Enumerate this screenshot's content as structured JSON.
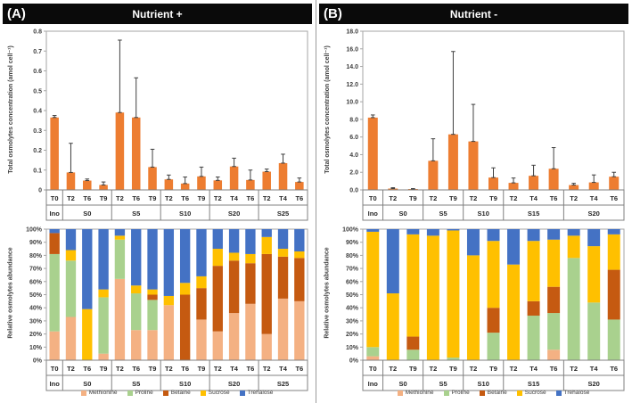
{
  "figure": {
    "panels": [
      {
        "label": "(A)",
        "title": "Nutrient +"
      },
      {
        "label": "(B)",
        "title": "Nutrient -"
      }
    ]
  },
  "colors": {
    "bar_orange": "#ED7D31",
    "methionine": "#F4B183",
    "proline": "#A9D18E",
    "betaine": "#C55A11",
    "sucrose": "#FFC000",
    "trehalose": "#4472C4",
    "error_bar": "#3F3F3F",
    "axis_line": "#A6A6A6",
    "table_line": "#808080",
    "header_bg": "#0A0A0A",
    "header_text": "#FFFFFF"
  },
  "chart_data": [
    {
      "id": "A_top",
      "type": "bar",
      "title": "Nutrient +",
      "ylabel": "Total osmolytes concentration (amol cell⁻¹)",
      "ylim": [
        0,
        0.8
      ],
      "ytick_labels": [
        "0",
        "0.1",
        "0.2",
        "0.3",
        "0.4",
        "0.5",
        "0.6",
        "0.7",
        "0.8"
      ],
      "bar_color": "#ED7D31",
      "groups": [
        {
          "label": "Ino",
          "categories": [
            "T0"
          ]
        },
        {
          "label": "S0",
          "categories": [
            "T2",
            "T6",
            "T9"
          ]
        },
        {
          "label": "S5",
          "categories": [
            "T2",
            "T6",
            "T9"
          ]
        },
        {
          "label": "S10",
          "categories": [
            "T2",
            "T6",
            "T9"
          ]
        },
        {
          "label": "S20",
          "categories": [
            "T2",
            "T4",
            "T6"
          ]
        },
        {
          "label": "S25",
          "categories": [
            "T2",
            "T4",
            "T6"
          ]
        }
      ],
      "values": [
        0.365,
        0.088,
        0.047,
        0.025,
        0.39,
        0.365,
        0.115,
        0.053,
        0.032,
        0.068,
        0.048,
        0.118,
        0.05,
        0.092,
        0.135,
        0.04
      ],
      "errors_up": [
        0.01,
        0.147,
        0.008,
        0.015,
        0.365,
        0.2,
        0.09,
        0.022,
        0.033,
        0.047,
        0.017,
        0.042,
        0.05,
        0.013,
        0.045,
        0.02
      ]
    },
    {
      "id": "B_top",
      "type": "bar",
      "title": "Nutrient -",
      "ylabel": "Total osmolytes concentration (amol cell⁻¹)",
      "ylim": [
        0,
        18
      ],
      "ytick_labels": [
        "0.0",
        "2.0",
        "4.0",
        "6.0",
        "8.0",
        "10.0",
        "12.0",
        "14.0",
        "16.0",
        "18.0"
      ],
      "bar_color": "#ED7D31",
      "groups": [
        {
          "label": "Ino",
          "categories": [
            "T0"
          ]
        },
        {
          "label": "S0",
          "categories": [
            "T2",
            "T9"
          ]
        },
        {
          "label": "S5",
          "categories": [
            "T2",
            "T9"
          ]
        },
        {
          "label": "S10",
          "categories": [
            "T2",
            "T9"
          ]
        },
        {
          "label": "S15",
          "categories": [
            "T2",
            "T4",
            "T6"
          ]
        },
        {
          "label": "S20",
          "categories": [
            "T2",
            "T4",
            "T6"
          ]
        }
      ],
      "values": [
        8.2,
        0.15,
        0.1,
        3.3,
        6.3,
        5.5,
        1.4,
        0.8,
        1.6,
        2.4,
        0.55,
        0.85,
        1.5
      ],
      "errors_up": [
        0.3,
        0.1,
        0.05,
        2.5,
        9.4,
        4.2,
        1.1,
        0.55,
        1.2,
        2.4,
        0.2,
        0.85,
        0.5
      ]
    },
    {
      "id": "A_bottom",
      "type": "stacked_bar_100",
      "title": "Nutrient + relative osmolytes abundance",
      "ylabel": "Relative osmolytes abundance",
      "ylim": [
        0,
        100
      ],
      "ytick_labels": [
        "0%",
        "10%",
        "20%",
        "30%",
        "40%",
        "50%",
        "60%",
        "70%",
        "80%",
        "90%",
        "100%"
      ],
      "groups": [
        {
          "label": "Ino",
          "categories": [
            "T0"
          ]
        },
        {
          "label": "S0",
          "categories": [
            "T2",
            "T6",
            "T9"
          ]
        },
        {
          "label": "S5",
          "categories": [
            "T2",
            "T6",
            "T9"
          ]
        },
        {
          "label": "S10",
          "categories": [
            "T2",
            "T6",
            "T9"
          ]
        },
        {
          "label": "S20",
          "categories": [
            "T2",
            "T4",
            "T6"
          ]
        },
        {
          "label": "S25",
          "categories": [
            "T2",
            "T4",
            "T6"
          ]
        }
      ],
      "series": [
        {
          "name": "Methionine",
          "color": "#F4B183",
          "values": [
            22,
            33,
            0,
            5,
            62,
            23,
            23,
            42,
            0,
            31,
            22,
            36,
            43,
            20,
            47,
            45
          ]
        },
        {
          "name": "Proline",
          "color": "#A9D18E",
          "values": [
            59,
            43,
            0,
            43,
            30,
            28,
            23,
            0,
            0,
            0,
            0,
            0,
            0,
            0,
            0,
            0
          ]
        },
        {
          "name": "Betaine",
          "color": "#C55A11",
          "values": [
            16,
            0,
            0,
            0,
            0,
            0,
            4,
            0,
            50,
            24,
            50,
            40,
            31,
            61,
            32,
            33
          ]
        },
        {
          "name": "Sucrose",
          "color": "#FFC000",
          "values": [
            0,
            8,
            39,
            6,
            3,
            6,
            4,
            7,
            9,
            9,
            13,
            6,
            7,
            13,
            6,
            5
          ]
        },
        {
          "name": "Trehalose",
          "color": "#4472C4",
          "values": [
            3,
            16,
            61,
            46,
            5,
            43,
            46,
            51,
            41,
            36,
            15,
            18,
            19,
            6,
            15,
            17
          ]
        }
      ]
    },
    {
      "id": "B_bottom",
      "type": "stacked_bar_100",
      "title": "Nutrient - relative osmolytes abundance",
      "ylabel": "Relative osmolytes abundance",
      "ylim": [
        0,
        100
      ],
      "ytick_labels": [
        "0%",
        "10%",
        "20%",
        "30%",
        "40%",
        "50%",
        "60%",
        "70%",
        "80%",
        "90%",
        "100%"
      ],
      "groups": [
        {
          "label": "Ino",
          "categories": [
            "T0"
          ]
        },
        {
          "label": "S0",
          "categories": [
            "T2",
            "T9"
          ]
        },
        {
          "label": "S5",
          "categories": [
            "T2",
            "T9"
          ]
        },
        {
          "label": "S10",
          "categories": [
            "T2",
            "T9"
          ]
        },
        {
          "label": "S15",
          "categories": [
            "T2",
            "T4",
            "T6"
          ]
        },
        {
          "label": "S20",
          "categories": [
            "T2",
            "T4",
            "T6"
          ]
        }
      ],
      "series": [
        {
          "name": "Methionine",
          "color": "#F4B183",
          "values": [
            3,
            0,
            0,
            0,
            0,
            0,
            0,
            0,
            0,
            8,
            0,
            0,
            0
          ]
        },
        {
          "name": "Proline",
          "color": "#A9D18E",
          "values": [
            7,
            0,
            8,
            0,
            2,
            0,
            21,
            0,
            34,
            28,
            78,
            44,
            31
          ]
        },
        {
          "name": "Betaine",
          "color": "#C55A11",
          "values": [
            0,
            0,
            10,
            0,
            0,
            0,
            19,
            0,
            11,
            20,
            0,
            0,
            38
          ]
        },
        {
          "name": "Sucrose",
          "color": "#FFC000",
          "values": [
            88,
            51,
            78,
            95,
            97,
            80,
            51,
            73,
            46,
            36,
            17,
            43,
            27
          ]
        },
        {
          "name": "Trehalose",
          "color": "#4472C4",
          "values": [
            2,
            49,
            4,
            5,
            1,
            20,
            9,
            27,
            9,
            8,
            5,
            13,
            4
          ]
        }
      ]
    }
  ]
}
